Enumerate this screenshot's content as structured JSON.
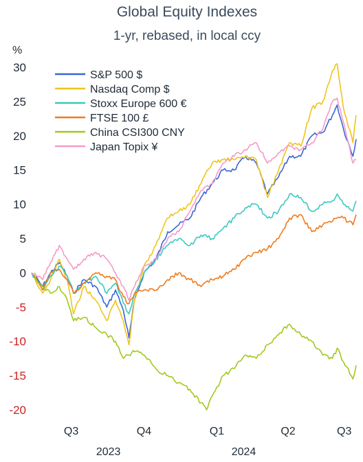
{
  "chart_data": {
    "type": "line",
    "title": "Global Equity Indexes",
    "subtitle": "1-yr, rebased, in local ccy",
    "ylabel": "%",
    "ylim": [
      -20,
      30
    ],
    "yticks": [
      30,
      25,
      20,
      15,
      10,
      5,
      0,
      -5,
      -10,
      -15,
      -20
    ],
    "xlim": [
      "2023-06-26",
      "2024-08-09"
    ],
    "quarter_ticks": [
      {
        "label": "Q3",
        "date": "2023-08-15"
      },
      {
        "label": "Q4",
        "date": "2023-11-15"
      },
      {
        "label": "Q1",
        "date": "2024-02-15"
      },
      {
        "label": "Q2",
        "date": "2024-05-15"
      },
      {
        "label": "Q3",
        "date": "2024-07-25"
      }
    ],
    "year_labels": [
      {
        "label": "2023",
        "date": "2023-10-01"
      },
      {
        "label": "2024",
        "date": "2024-03-20"
      }
    ],
    "legend_position": "top-left",
    "grid": false,
    "series": [
      {
        "name": "S&P 500 $",
        "color": "#3a64d8",
        "points": [
          [
            "2023-06-26",
            0
          ],
          [
            "2023-07-10",
            -2
          ],
          [
            "2023-07-20",
            0
          ],
          [
            "2023-07-31",
            1.5
          ],
          [
            "2023-08-10",
            -0.5
          ],
          [
            "2023-08-18",
            -3
          ],
          [
            "2023-08-31",
            -1
          ],
          [
            "2023-09-15",
            -2
          ],
          [
            "2023-09-29",
            -5
          ],
          [
            "2023-10-10",
            -2.5
          ],
          [
            "2023-10-20",
            -5.5
          ],
          [
            "2023-10-27",
            -9.5
          ],
          [
            "2023-11-03",
            -4
          ],
          [
            "2023-11-15",
            0
          ],
          [
            "2023-11-30",
            2
          ],
          [
            "2023-12-15",
            6
          ],
          [
            "2023-12-29",
            7
          ],
          [
            "2024-01-12",
            8
          ],
          [
            "2024-01-26",
            11
          ],
          [
            "2024-02-09",
            13
          ],
          [
            "2024-02-23",
            15
          ],
          [
            "2024-03-08",
            15
          ],
          [
            "2024-03-22",
            17
          ],
          [
            "2024-04-05",
            16
          ],
          [
            "2024-04-19",
            11.5
          ],
          [
            "2024-05-03",
            14
          ],
          [
            "2024-05-17",
            17
          ],
          [
            "2024-05-31",
            17
          ],
          [
            "2024-06-14",
            20
          ],
          [
            "2024-06-28",
            20.5
          ],
          [
            "2024-07-10",
            23
          ],
          [
            "2024-07-16",
            24.5
          ],
          [
            "2024-07-24",
            21
          ],
          [
            "2024-08-05",
            17
          ],
          [
            "2024-08-09",
            19.5
          ]
        ]
      },
      {
        "name": "Nasdaq Comp $",
        "color": "#f0c419",
        "points": [
          [
            "2023-06-26",
            0
          ],
          [
            "2023-07-10",
            -3
          ],
          [
            "2023-07-20",
            -1
          ],
          [
            "2023-07-31",
            2
          ],
          [
            "2023-08-10",
            -1
          ],
          [
            "2023-08-18",
            -6
          ],
          [
            "2023-08-31",
            -2
          ],
          [
            "2023-09-15",
            -4
          ],
          [
            "2023-09-29",
            -7
          ],
          [
            "2023-10-10",
            -4
          ],
          [
            "2023-10-20",
            -7
          ],
          [
            "2023-10-27",
            -10.5
          ],
          [
            "2023-11-03",
            -4
          ],
          [
            "2023-11-15",
            1
          ],
          [
            "2023-11-30",
            4
          ],
          [
            "2023-12-15",
            8
          ],
          [
            "2023-12-29",
            9
          ],
          [
            "2024-01-12",
            10
          ],
          [
            "2024-01-26",
            13
          ],
          [
            "2024-02-09",
            16
          ],
          [
            "2024-02-23",
            16.5
          ],
          [
            "2024-03-08",
            16.5
          ],
          [
            "2024-03-22",
            17
          ],
          [
            "2024-04-05",
            16.5
          ],
          [
            "2024-04-19",
            11
          ],
          [
            "2024-05-03",
            15
          ],
          [
            "2024-05-17",
            19
          ],
          [
            "2024-05-31",
            18.5
          ],
          [
            "2024-06-14",
            24
          ],
          [
            "2024-06-28",
            25
          ],
          [
            "2024-07-10",
            29.5
          ],
          [
            "2024-07-16",
            30.5
          ],
          [
            "2024-07-24",
            24
          ],
          [
            "2024-08-05",
            19
          ],
          [
            "2024-08-09",
            23
          ]
        ]
      },
      {
        "name": "Stoxx Europe 600 €",
        "color": "#3cc8c0",
        "points": [
          [
            "2023-06-26",
            0
          ],
          [
            "2023-07-10",
            -2.5
          ],
          [
            "2023-07-20",
            -0.5
          ],
          [
            "2023-07-31",
            1
          ],
          [
            "2023-08-10",
            -0.5
          ],
          [
            "2023-08-18",
            -3
          ],
          [
            "2023-08-31",
            -1.5
          ],
          [
            "2023-09-15",
            -0.5
          ],
          [
            "2023-09-29",
            -3
          ],
          [
            "2023-10-10",
            -1.5
          ],
          [
            "2023-10-20",
            -4.5
          ],
          [
            "2023-10-27",
            -6
          ],
          [
            "2023-11-03",
            -3
          ],
          [
            "2023-11-15",
            0
          ],
          [
            "2023-11-30",
            2
          ],
          [
            "2023-12-15",
            4
          ],
          [
            "2023-12-29",
            5
          ],
          [
            "2024-01-12",
            4
          ],
          [
            "2024-01-26",
            5.5
          ],
          [
            "2024-02-09",
            5
          ],
          [
            "2024-02-23",
            6.5
          ],
          [
            "2024-03-08",
            8
          ],
          [
            "2024-03-22",
            9.5
          ],
          [
            "2024-04-05",
            10
          ],
          [
            "2024-04-19",
            8
          ],
          [
            "2024-05-03",
            9
          ],
          [
            "2024-05-17",
            11.5
          ],
          [
            "2024-05-31",
            11
          ],
          [
            "2024-06-14",
            9
          ],
          [
            "2024-06-28",
            10
          ],
          [
            "2024-07-10",
            10.5
          ],
          [
            "2024-07-16",
            11.5
          ],
          [
            "2024-07-24",
            10
          ],
          [
            "2024-08-05",
            9
          ],
          [
            "2024-08-09",
            10.5
          ]
        ]
      },
      {
        "name": "FTSE 100 £",
        "color": "#f07a1a",
        "points": [
          [
            "2023-06-26",
            0
          ],
          [
            "2023-07-10",
            -2.5
          ],
          [
            "2023-07-20",
            0
          ],
          [
            "2023-07-31",
            0.5
          ],
          [
            "2023-08-10",
            -1
          ],
          [
            "2023-08-18",
            -3
          ],
          [
            "2023-08-31",
            -1.5
          ],
          [
            "2023-09-15",
            0
          ],
          [
            "2023-09-29",
            -0.5
          ],
          [
            "2023-10-10",
            -1
          ],
          [
            "2023-10-20",
            -3.5
          ],
          [
            "2023-10-27",
            -4.5
          ],
          [
            "2023-11-03",
            -3
          ],
          [
            "2023-11-15",
            -2.5
          ],
          [
            "2023-11-30",
            -2.5
          ],
          [
            "2023-12-15",
            -1
          ],
          [
            "2023-12-29",
            0
          ],
          [
            "2024-01-12",
            -1
          ],
          [
            "2024-01-26",
            -2
          ],
          [
            "2024-02-09",
            -1
          ],
          [
            "2024-02-23",
            -0.5
          ],
          [
            "2024-03-08",
            0.5
          ],
          [
            "2024-03-22",
            2
          ],
          [
            "2024-04-05",
            3
          ],
          [
            "2024-04-19",
            3.5
          ],
          [
            "2024-05-03",
            5
          ],
          [
            "2024-05-17",
            8
          ],
          [
            "2024-05-31",
            8.5
          ],
          [
            "2024-06-14",
            6
          ],
          [
            "2024-06-28",
            7
          ],
          [
            "2024-07-10",
            7.5
          ],
          [
            "2024-07-16",
            8
          ],
          [
            "2024-07-24",
            8
          ],
          [
            "2024-08-05",
            7
          ],
          [
            "2024-08-09",
            8.5
          ]
        ]
      },
      {
        "name": "China CSI300 CNY",
        "color": "#a0c81e",
        "points": [
          [
            "2023-06-26",
            0
          ],
          [
            "2023-07-10",
            -2
          ],
          [
            "2023-07-20",
            -3
          ],
          [
            "2023-07-31",
            -2
          ],
          [
            "2023-08-10",
            -4
          ],
          [
            "2023-08-18",
            -7
          ],
          [
            "2023-08-31",
            -6.5
          ],
          [
            "2023-09-15",
            -8
          ],
          [
            "2023-09-29",
            -9
          ],
          [
            "2023-10-10",
            -10
          ],
          [
            "2023-10-20",
            -12.5
          ],
          [
            "2023-10-27",
            -12
          ],
          [
            "2023-11-03",
            -11.5
          ],
          [
            "2023-11-15",
            -12
          ],
          [
            "2023-11-30",
            -14
          ],
          [
            "2023-12-15",
            -15
          ],
          [
            "2023-12-29",
            -16
          ],
          [
            "2024-01-12",
            -17
          ],
          [
            "2024-01-26",
            -19
          ],
          [
            "2024-02-02",
            -20
          ],
          [
            "2024-02-09",
            -18
          ],
          [
            "2024-02-23",
            -15
          ],
          [
            "2024-03-08",
            -14
          ],
          [
            "2024-03-22",
            -12
          ],
          [
            "2024-04-05",
            -12.5
          ],
          [
            "2024-04-19",
            -10.5
          ],
          [
            "2024-05-03",
            -9
          ],
          [
            "2024-05-17",
            -7.5
          ],
          [
            "2024-05-31",
            -9
          ],
          [
            "2024-06-14",
            -10
          ],
          [
            "2024-06-28",
            -12
          ],
          [
            "2024-07-10",
            -12.5
          ],
          [
            "2024-07-16",
            -11
          ],
          [
            "2024-07-24",
            -13
          ],
          [
            "2024-08-05",
            -15.5
          ],
          [
            "2024-08-09",
            -13.5
          ]
        ]
      },
      {
        "name": "Japan Topix ¥",
        "color": "#f49ac8",
        "points": [
          [
            "2023-06-26",
            0
          ],
          [
            "2023-07-10",
            -1
          ],
          [
            "2023-07-20",
            1.5
          ],
          [
            "2023-07-31",
            4
          ],
          [
            "2023-08-10",
            2
          ],
          [
            "2023-08-18",
            0.5
          ],
          [
            "2023-08-31",
            2
          ],
          [
            "2023-09-15",
            3
          ],
          [
            "2023-09-29",
            2
          ],
          [
            "2023-10-10",
            0
          ],
          [
            "2023-10-20",
            -2
          ],
          [
            "2023-10-27",
            -4
          ],
          [
            "2023-11-03",
            -2
          ],
          [
            "2023-11-15",
            1
          ],
          [
            "2023-11-30",
            2
          ],
          [
            "2023-12-15",
            5
          ],
          [
            "2023-12-29",
            6
          ],
          [
            "2024-01-12",
            9
          ],
          [
            "2024-01-26",
            12
          ],
          [
            "2024-02-09",
            13
          ],
          [
            "2024-02-23",
            16
          ],
          [
            "2024-03-08",
            17
          ],
          [
            "2024-03-22",
            18
          ],
          [
            "2024-04-05",
            19
          ],
          [
            "2024-04-19",
            16
          ],
          [
            "2024-05-03",
            17.5
          ],
          [
            "2024-05-17",
            18.5
          ],
          [
            "2024-05-31",
            18
          ],
          [
            "2024-06-14",
            19
          ],
          [
            "2024-06-28",
            21
          ],
          [
            "2024-07-10",
            25
          ],
          [
            "2024-07-16",
            25.5
          ],
          [
            "2024-07-24",
            22
          ],
          [
            "2024-08-05",
            16
          ],
          [
            "2024-08-09",
            16.5
          ]
        ]
      }
    ]
  }
}
